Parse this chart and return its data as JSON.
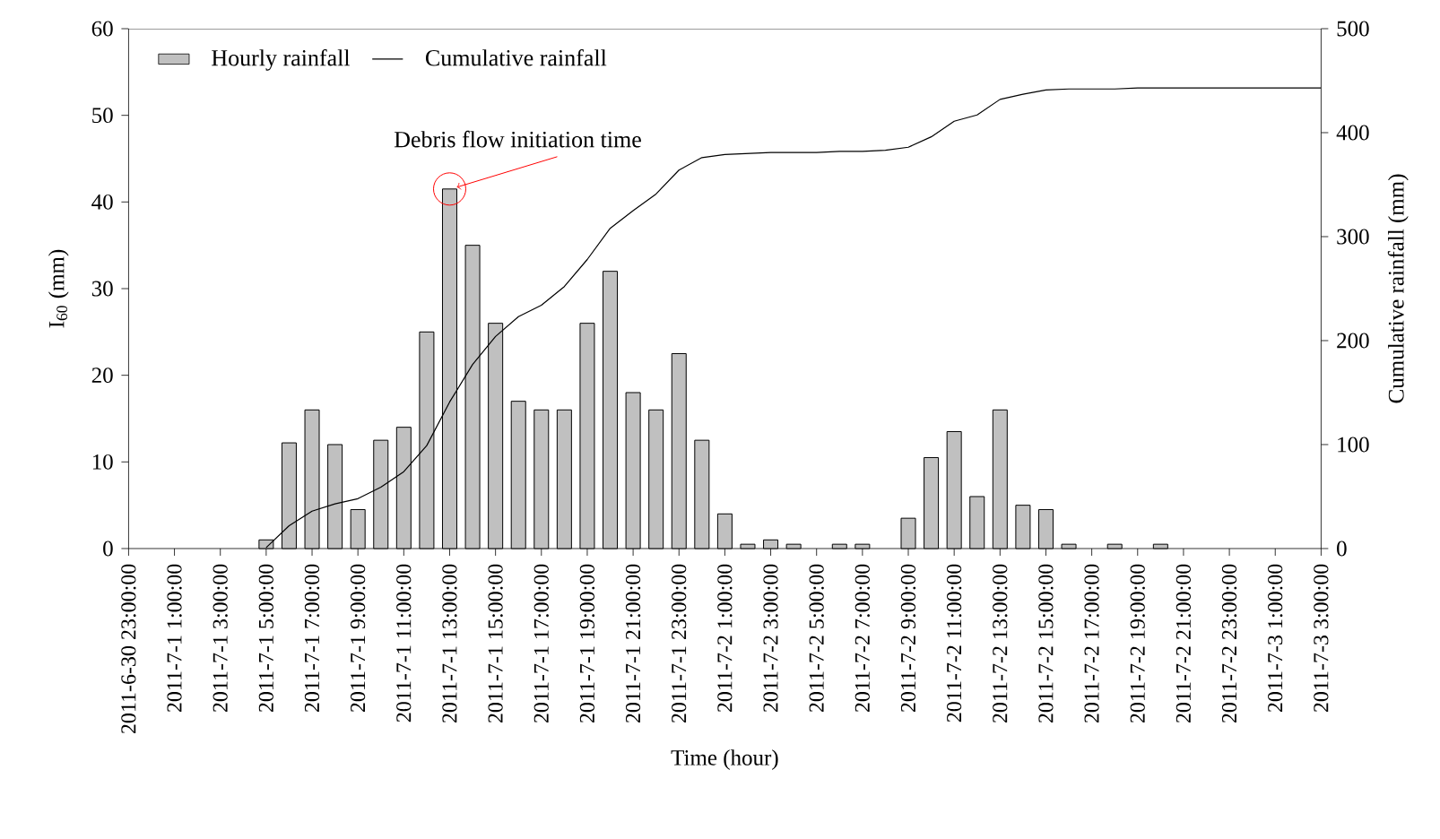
{
  "chart_data": {
    "type": "bar",
    "xlabel": "Time (hour)",
    "ylabel": "I$_{60}$ (mm)",
    "y2label": "Cumulative rainfall (mm)",
    "categories": [
      "2011-6-30 23:00:00",
      null,
      "2011-7-1 1:00:00",
      null,
      "2011-7-1 3:00:00",
      null,
      "2011-7-1 5:00:00",
      null,
      "2011-7-1 7:00:00",
      null,
      "2011-7-1 9:00:00",
      null,
      "2011-7-1 11:00:00",
      null,
      "2011-7-1 13:00:00",
      null,
      "2011-7-1 15:00:00",
      null,
      "2011-7-1 17:00:00",
      null,
      "2011-7-1 19:00:00",
      null,
      "2011-7-1 21:00:00",
      null,
      "2011-7-1 23:00:00",
      null,
      "2011-7-2 1:00:00",
      null,
      "2011-7-2 3:00:00",
      null,
      "2011-7-2 5:00:00",
      null,
      "2011-7-2 7:00:00",
      null,
      "2011-7-2 9:00:00",
      null,
      "2011-7-2 11:00:00",
      null,
      "2011-7-2 13:00:00",
      null,
      "2011-7-2 15:00:00",
      null,
      "2011-7-2 17:00:00",
      null,
      "2011-7-2 19:00:00",
      null,
      "2011-7-2 21:00:00",
      null,
      "2011-7-2 23:00:00",
      null,
      "2011-7-3 1:00:00",
      null,
      "2011-7-3 3:00:00"
    ],
    "series": [
      {
        "name": "Hourly rainfall",
        "color": "#c0c0c0",
        "values": [
          null,
          null,
          null,
          null,
          null,
          null,
          1,
          12.2,
          16,
          12,
          4.5,
          12.5,
          14,
          25,
          41.5,
          35,
          26,
          17,
          16,
          16,
          26,
          32,
          18,
          16,
          22.5,
          12.5,
          4,
          0.5,
          1,
          0.5,
          null,
          0.5,
          0.5,
          null,
          3.5,
          10.5,
          13.5,
          6,
          16,
          5,
          4.5,
          0.5,
          null,
          0.5,
          null,
          0.5,
          null,
          null,
          null,
          null,
          null,
          null,
          null
        ]
      },
      {
        "name": "Cumulative rainfall",
        "type": "line",
        "axis": "y2",
        "color": "#000000",
        "values": [
          null,
          null,
          null,
          null,
          null,
          null,
          1,
          22,
          36,
          43,
          48,
          59,
          74,
          99,
          141,
          177,
          204,
          223,
          234,
          252,
          278,
          308,
          325,
          341,
          364,
          376,
          379,
          380,
          381,
          381,
          381,
          382,
          382,
          383,
          386,
          396,
          411,
          417,
          432,
          437,
          441,
          442,
          442,
          442,
          443,
          443,
          443,
          443,
          443,
          443,
          443,
          443,
          443
        ]
      }
    ],
    "ylim": [
      0,
      60
    ],
    "yticks": [
      0,
      10,
      20,
      30,
      40,
      50,
      60
    ],
    "y2lim": [
      0,
      500
    ],
    "y2ticks": [
      0,
      100,
      200,
      300,
      400,
      500
    ],
    "legend": "top left",
    "grid": false,
    "annotations": [
      {
        "text": "Debris flow initiation time",
        "x": "2011-7-1 13:00:00",
        "y": 41.5
      }
    ]
  }
}
